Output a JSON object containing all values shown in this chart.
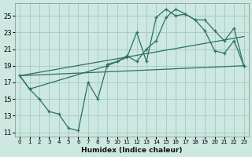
{
  "xlabel": "Humidex (Indice chaleur)",
  "background_color": "#cce8e0",
  "grid_color": "#aaccC4",
  "line_color": "#2d7068",
  "xlim": [
    -0.5,
    23.5
  ],
  "ylim": [
    10.5,
    26.5
  ],
  "xticks": [
    0,
    1,
    2,
    3,
    4,
    5,
    6,
    7,
    8,
    9,
    10,
    11,
    12,
    13,
    14,
    15,
    16,
    17,
    18,
    19,
    20,
    21,
    22,
    23
  ],
  "yticks": [
    11,
    13,
    15,
    17,
    19,
    21,
    23,
    25
  ],
  "line1_x": [
    0,
    1,
    2,
    3,
    4,
    5,
    6,
    7,
    8,
    9,
    10,
    11,
    12,
    13,
    14,
    15,
    16,
    17,
    18,
    19,
    20,
    21,
    22,
    23
  ],
  "line1_y": [
    17.8,
    16.2,
    15.0,
    13.5,
    13.2,
    11.5,
    11.2,
    17.0,
    15.0,
    19.2,
    19.5,
    20.0,
    23.0,
    19.5,
    24.8,
    25.8,
    25.0,
    25.2,
    24.5,
    23.2,
    20.8,
    20.5,
    22.0,
    19.0
  ],
  "line2_x": [
    0,
    1,
    9,
    10,
    11,
    12,
    13,
    14,
    15,
    16,
    17,
    18,
    19,
    20,
    21,
    22,
    23
  ],
  "line2_y": [
    17.8,
    16.2,
    19.0,
    19.5,
    20.2,
    19.5,
    21.0,
    22.0,
    24.8,
    25.8,
    25.2,
    24.5,
    24.5,
    23.2,
    22.0,
    23.5,
    19.0
  ],
  "line3_x": [
    0,
    23
  ],
  "line3_y": [
    17.8,
    19.0
  ],
  "line4_x": [
    0,
    23
  ],
  "line4_y": [
    17.8,
    22.5
  ]
}
